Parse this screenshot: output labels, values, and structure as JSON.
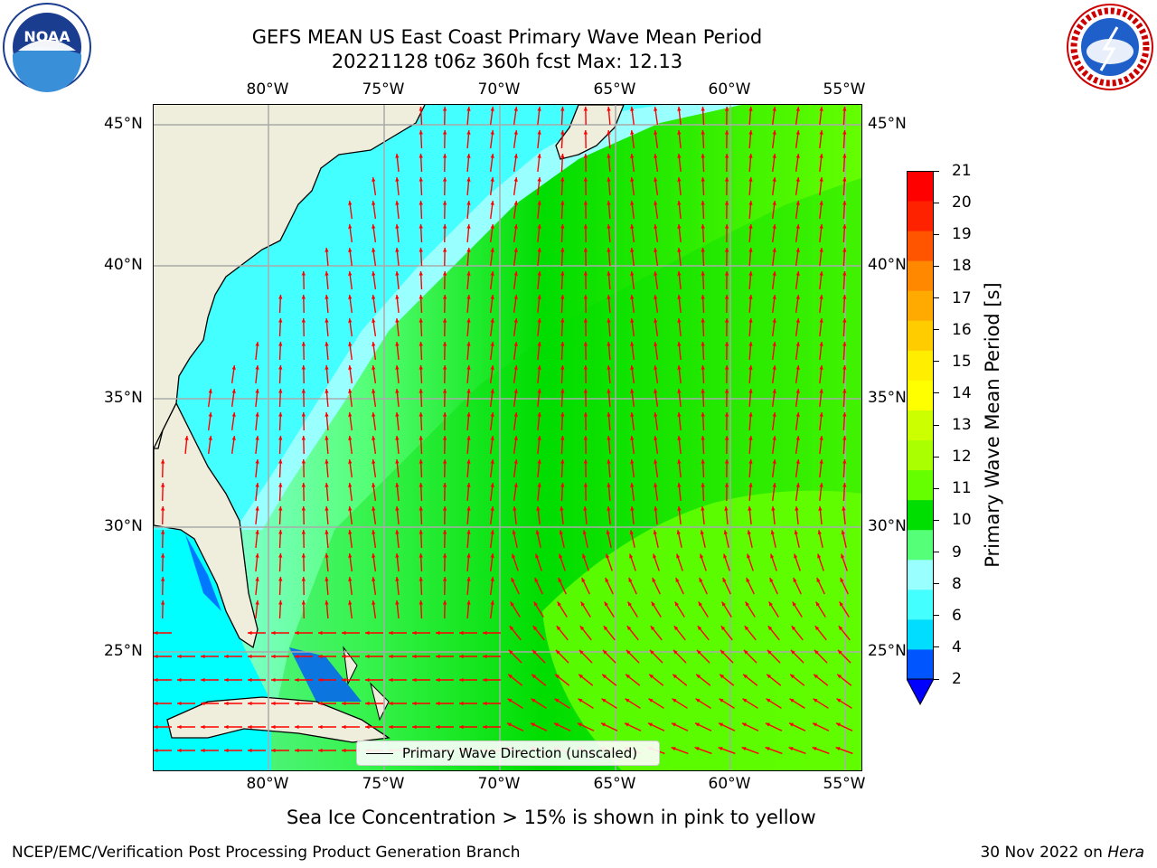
{
  "title_line1": "GEFS MEAN US East Coast Primary Wave Mean Period",
  "title_line2": "20221128 t06z 360h fcst   Max: 12.13",
  "map": {
    "lon_ticks_top": [
      "80°W",
      "75°W",
      "70°W",
      "65°W",
      "60°W",
      "55°W"
    ],
    "lon_ticks_bottom": [
      "80°W",
      "75°W",
      "70°W",
      "65°W",
      "60°W",
      "55°W"
    ],
    "lat_ticks_left": [
      "45°N",
      "40°N",
      "35°N",
      "30°N",
      "25°N"
    ],
    "lat_ticks_right": [
      "45°N",
      "40°N",
      "35°N",
      "30°N",
      "25°N"
    ],
    "lon_range": [
      -85,
      -54.2
    ],
    "lat_range": [
      20.5,
      46
    ],
    "max_value": 12.13,
    "land_color": "#efeedc",
    "arrow_color": "#ff0000"
  },
  "legend": {
    "label": "Primary Wave Direction (unscaled)"
  },
  "colorbar": {
    "title": "Primary Wave Mean Period [s]",
    "ticks": [
      "21",
      "20",
      "19",
      "18",
      "17",
      "16",
      "15",
      "14",
      "13",
      "12",
      "11",
      "10",
      "9",
      "8",
      "6",
      "4",
      "2"
    ],
    "colors_bottom_to_top": [
      "#0055ff",
      "#00ddff",
      "#44ffff",
      "#99ffff",
      "#55ff77",
      "#00dd00",
      "#66ff00",
      "#aaff00",
      "#ccff00",
      "#ffff00",
      "#ffee00",
      "#ffcc00",
      "#ffaa00",
      "#ff8800",
      "#ff5500",
      "#ff2200",
      "#ff0000"
    ],
    "under_color": "#0000ff"
  },
  "caption": "Sea Ice Concentration > 15% is shown in pink to yellow",
  "footer_left": "NCEP/EMC/Verification Post Processing Product Generation Branch",
  "footer_date": "30 Nov 2022 on",
  "footer_machine": "Hera",
  "logos": {
    "noaa_text": "NOAA",
    "nws_text": "NATIONAL WEATHER SERVICE"
  }
}
